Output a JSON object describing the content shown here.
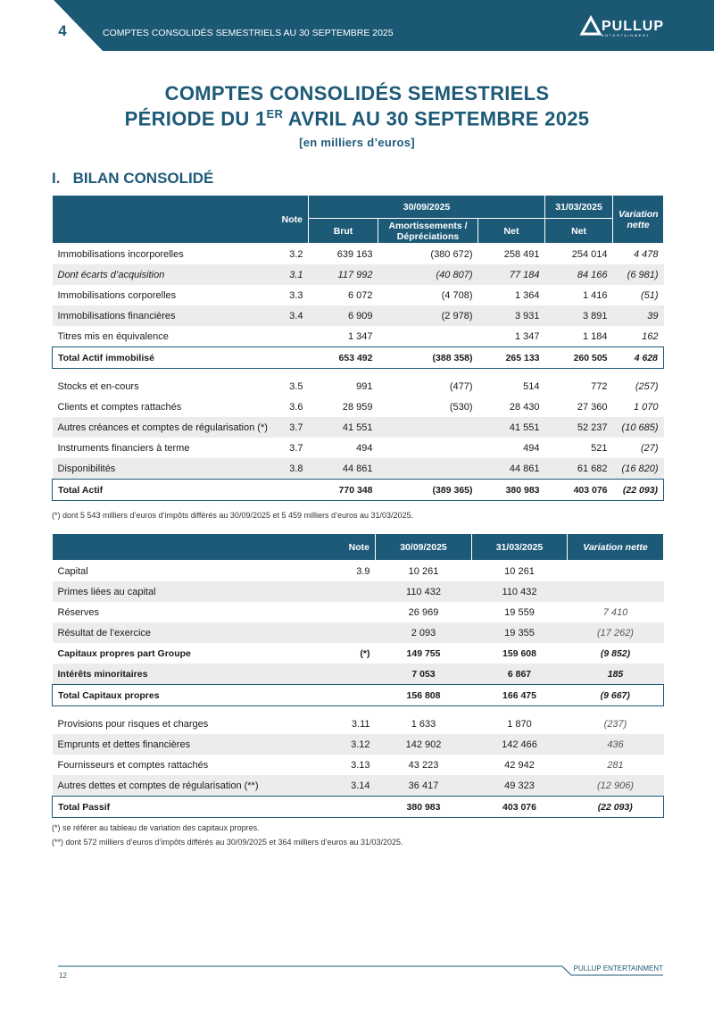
{
  "header": {
    "page_number": "4",
    "running_title": "COMPTES CONSOLIDÉS SEMESTRIELS AU 30 SEPTEMBRE 2025",
    "logo": "PULLUP",
    "logo_sub": "ENTERTAINMENT"
  },
  "title": {
    "line1": "COMPTES CONSOLIDÉS SEMESTRIELS",
    "line2_start": "PÉRIODE DU 1",
    "line2_sup": "ER",
    "line2_end": " AVRIL AU 30 SEPTEMBRE 2025",
    "subtitle": "[en milliers d’euros]"
  },
  "section": {
    "number": "I.",
    "title": "BILAN CONSOLIDÉ"
  },
  "actif": {
    "headers": {
      "note": "Note",
      "period1": "30/09/2025",
      "period2": "31/03/2025",
      "variation": "Variation nette",
      "brut": "Brut",
      "amort": "Amortissements / Dépréciations",
      "net1": "Net",
      "net2": "Net"
    },
    "rows": [
      [
        "Immobilisations incorporelles",
        "3.2",
        "639 163",
        "(380 672)",
        "258 491",
        "254 014",
        "4 478"
      ],
      [
        "Dont écarts d’acquisition",
        "3.1",
        "117 992",
        "(40 807)",
        "77 184",
        "84 166",
        "(6 981)"
      ],
      [
        "Immobilisations corporelles",
        "3.3",
        "6 072",
        "(4 708)",
        "1 364",
        "1 416",
        "(51)"
      ],
      [
        "Immobilisations financières",
        "3.4",
        "6 909",
        "(2 978)",
        "3 931",
        "3 891",
        "39"
      ],
      [
        "Titres mis en équivalence",
        null,
        "1 347",
        null,
        "1 347",
        "1 184",
        "162"
      ],
      [
        "Total Actif immobilisé",
        null,
        "653 492",
        "(388 358)",
        "265 133",
        "260 505",
        "4 628"
      ],
      [
        "Stocks et en-cours",
        "3.5",
        "991",
        "(477)",
        "514",
        "772",
        "(257)"
      ],
      [
        "Clients et comptes rattachés",
        "3.6",
        "28 959",
        "(530)",
        "28 430",
        "27 360",
        "1 070"
      ],
      [
        "Autres créances et comptes de régularisation (*)",
        "3.7",
        "41 551",
        null,
        "41 551",
        "52 237",
        "(10 685)"
      ],
      [
        "Instruments financiers à terme",
        "3.7",
        "494",
        null,
        "494",
        "521",
        "(27)"
      ],
      [
        "Disponibilités",
        "3.8",
        "44 861",
        null,
        "44 861",
        "61 682",
        "(16 820)"
      ],
      [
        "Total Actif",
        null,
        "770 348",
        "(389 365)",
        "380 983",
        "403 076",
        "(22 093)"
      ]
    ],
    "footnote": "(*) dont 5 543 milliers d’euros d’impôts différés au 30/09/2025 et 5 459 milliers d’euros au 31/03/2025."
  },
  "passif": {
    "headers": {
      "note": "Note",
      "period1": "30/09/2025",
      "period2": "31/03/2025",
      "variation": "Variation nette"
    },
    "rows": [
      [
        "Capital",
        "3.9",
        "10 261",
        "10 261",
        null
      ],
      [
        "Primes liées au capital",
        null,
        "110 432",
        "110 432",
        null
      ],
      [
        "Réserves",
        null,
        "26 969",
        "19 559",
        "7 410"
      ],
      [
        "Résultat de l’exercice",
        null,
        "2 093",
        "19 355",
        "(17 262)"
      ],
      [
        "Capitaux propres part Groupe",
        "(*)",
        "149 755",
        "159 608",
        "(9 852)"
      ],
      [
        "Intérêts minoritaires",
        null,
        "7 053",
        "6 867",
        "185"
      ],
      [
        "Total Capitaux propres",
        null,
        "156 808",
        "166 475",
        "(9 667)"
      ],
      [
        "Provisions pour risques et charges",
        "3.11",
        "1 633",
        "1 870",
        "(237)"
      ],
      [
        "Emprunts et dettes financières",
        "3.12",
        "142 902",
        "142 466",
        "436"
      ],
      [
        "Fournisseurs et comptes rattachés",
        "3.13",
        "43 223",
        "42 942",
        "281"
      ],
      [
        "Autres dettes et comptes de régularisation (**)",
        "3.14",
        "36 417",
        "49 323",
        "(12 906)"
      ],
      [
        "Total Passif",
        null,
        "380 983",
        "403 076",
        "(22 093)"
      ]
    ],
    "footnotes": [
      "(*) se référer au tableau de variation des capitaux propres.",
      "(**) dont 572 milliers d’euros d’impôts différés au 30/09/2025 et 364 milliers d’euros au 31/03/2025."
    ]
  },
  "footer": {
    "company": "PULLUP ENTERTAINMENT",
    "page": "12"
  }
}
